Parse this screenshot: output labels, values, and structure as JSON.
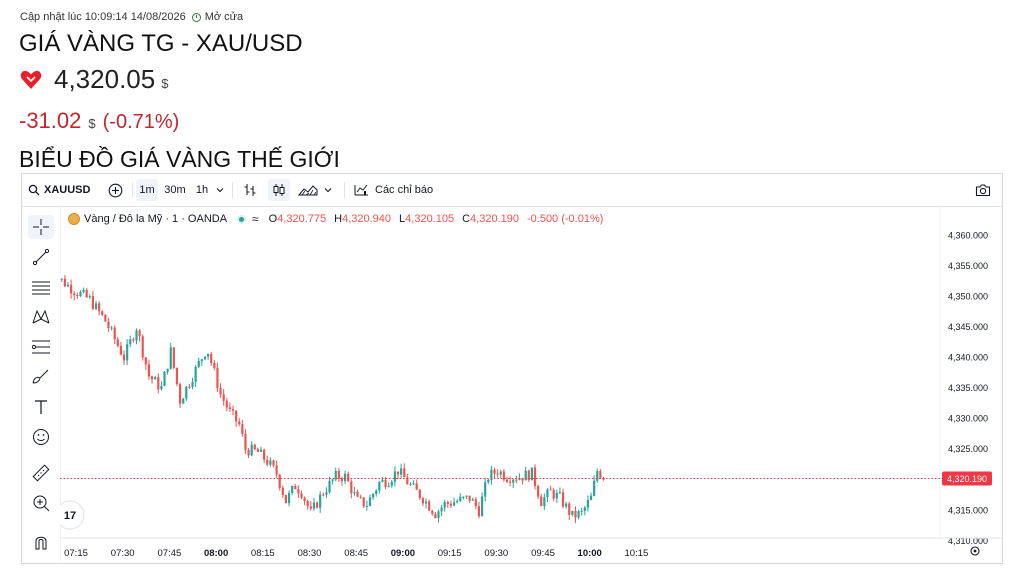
{
  "header": {
    "updated_label": "Cập nhật lúc 10:09:14 14/08/2026",
    "market_status": "Mở cửa",
    "title": "GIÁ VÀNG TG - XAU/USD",
    "price": "4,320.05",
    "price_unit": "$",
    "change": "-31.02",
    "change_unit": "$",
    "change_pct": "(-0.71%)",
    "section_heading": "BIỂU ĐỒ GIÁ VÀNG THẾ GIỚI"
  },
  "colors": {
    "up": "#26a69a",
    "down": "#ef5350",
    "change_text": "#c0262d",
    "price_tag": "#f23645"
  },
  "toolbar": {
    "symbol": "XAUUSD",
    "intervals": [
      "1m",
      "30m",
      "1h"
    ],
    "selected_interval": "1m",
    "indicators_label": "Các chỉ báo",
    "icons": [
      "search-icon",
      "add-compare-icon",
      "bar-style-icon",
      "candles-icon",
      "area-icon",
      "chevron-down-icon",
      "indicators-icon",
      "camera-icon"
    ]
  },
  "left_tools": [
    "crosshair-icon",
    "trend-line-icon",
    "horizontal-lines-icon",
    "pattern-icon",
    "fib-icon",
    "brush-icon",
    "text-icon",
    "emoji-icon",
    "ruler-icon",
    "zoom-in-icon",
    "magnet-icon"
  ],
  "legend": {
    "name": "Vàng / Đô la Mỹ · 1 · OANDA",
    "o_label": "O",
    "o": "4,320.775",
    "h_label": "H",
    "h": "4,320.940",
    "l_label": "L",
    "l": "4,320.105",
    "c_label": "C",
    "c": "4,320.190",
    "change": "-0.500 (-0.01%)"
  },
  "chart_data": {
    "type": "candlestick",
    "symbol": "XAUUSD",
    "interval": "1m",
    "ylim": [
      4308,
      4364
    ],
    "y_ticks": [
      "4,360.000",
      "4,355.000",
      "4,350.000",
      "4,345.000",
      "4,340.000",
      "4,335.000",
      "4,330.000",
      "4,325.000",
      "4,320.000",
      "4,315.000",
      "4,310.000"
    ],
    "x_ticks": [
      "07:15",
      "07:30",
      "07:45",
      "08:00",
      "08:15",
      "08:30",
      "08:45",
      "09:00",
      "09:15",
      "09:30",
      "09:45",
      "10:00",
      "10:15"
    ],
    "last_price_tag": "4,320.190",
    "last_price": 4320.19,
    "close_path": [
      [
        "07:09",
        4358.0
      ],
      [
        "07:12",
        4353.0
      ],
      [
        "07:17",
        4351.0
      ],
      [
        "07:22",
        4349.5
      ],
      [
        "07:27",
        4346.0
      ],
      [
        "07:33",
        4340.0
      ],
      [
        "07:37",
        4345.0
      ],
      [
        "07:41",
        4337.0
      ],
      [
        "07:45",
        4335.0
      ],
      [
        "07:48",
        4341.0
      ],
      [
        "07:51",
        4333.0
      ],
      [
        "07:55",
        4337.0
      ],
      [
        "07:59",
        4341.0
      ],
      [
        "08:00",
        4341.0
      ],
      [
        "08:04",
        4334.0
      ],
      [
        "08:07",
        4331.0
      ],
      [
        "08:10",
        4329.0
      ],
      [
        "08:12",
        4325.0
      ],
      [
        "08:16",
        4324.5
      ],
      [
        "08:19",
        4323.0
      ],
      [
        "08:22",
        4321.0
      ],
      [
        "08:25",
        4316.5
      ],
      [
        "08:28",
        4319.0
      ],
      [
        "08:30",
        4318.0
      ],
      [
        "08:33",
        4314.5
      ],
      [
        "08:37",
        4318.0
      ],
      [
        "08:41",
        4320.5
      ],
      [
        "08:44",
        4320.5
      ],
      [
        "08:48",
        4316.5
      ],
      [
        "08:51",
        4316.0
      ],
      [
        "08:55",
        4319.5
      ],
      [
        "08:58",
        4320.0
      ],
      [
        "09:01",
        4321.5
      ],
      [
        "09:05",
        4319.0
      ],
      [
        "09:09",
        4317.0
      ],
      [
        "09:13",
        4314.5
      ],
      [
        "09:16",
        4316.0
      ],
      [
        "09:20",
        4316.5
      ],
      [
        "09:24",
        4317.0
      ],
      [
        "09:27",
        4315.0
      ],
      [
        "09:30",
        4320.5
      ],
      [
        "09:33",
        4321.5
      ],
      [
        "09:36",
        4320.5
      ],
      [
        "09:40",
        4320.5
      ],
      [
        "09:44",
        4321.0
      ],
      [
        "09:47",
        4316.5
      ],
      [
        "09:50",
        4318.0
      ],
      [
        "09:53",
        4317.0
      ],
      [
        "09:57",
        4314.0
      ],
      [
        "10:00",
        4314.5
      ],
      [
        "10:03",
        4317.0
      ],
      [
        "10:05",
        4321.5
      ],
      [
        "10:07",
        4320.5
      ]
    ]
  }
}
